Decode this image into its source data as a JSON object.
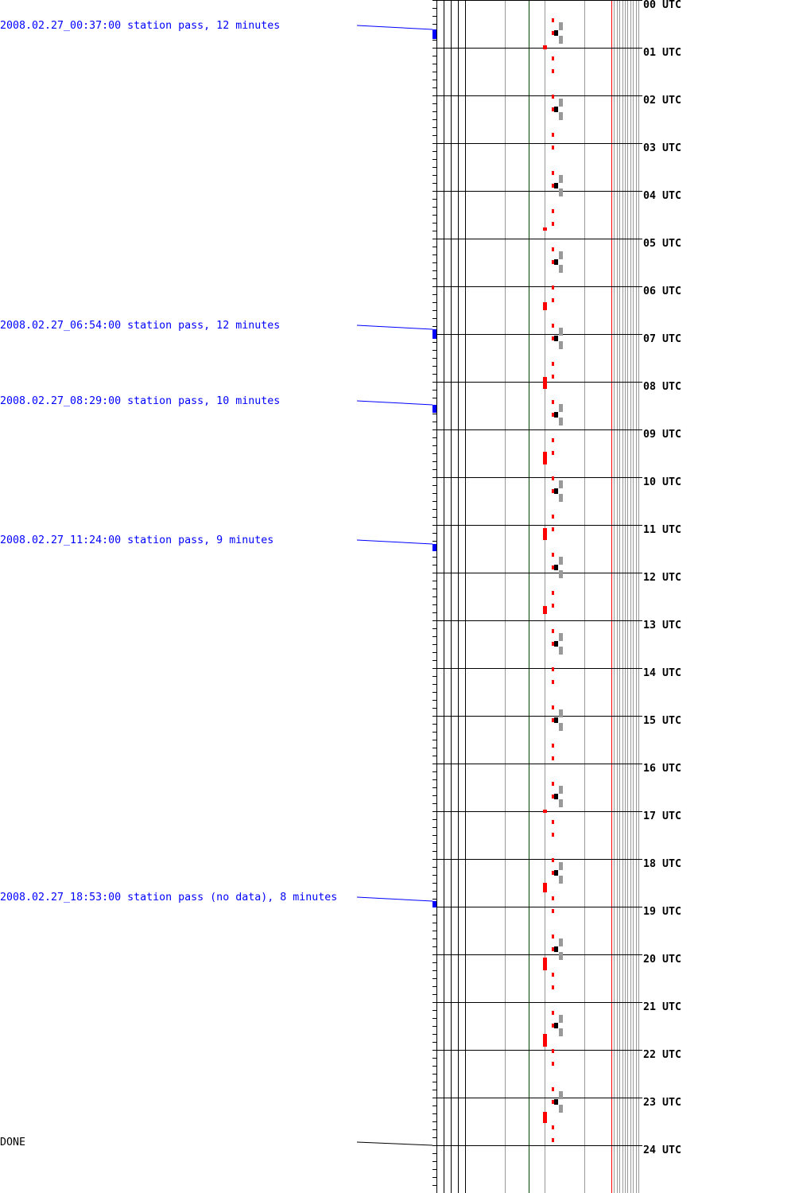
{
  "chart_data": {
    "type": "timeline",
    "y_axis": {
      "unit": "minutes of day",
      "range": [
        0,
        1500
      ],
      "minor_tick_minutes": 10
    },
    "hour_labels": [
      "00 UTC",
      "01 UTC",
      "02 UTC",
      "03 UTC",
      "04 UTC",
      "05 UTC",
      "06 UTC",
      "07 UTC",
      "08 UTC",
      "09 UTC",
      "10 UTC",
      "11 UTC",
      "12 UTC",
      "13 UTC",
      "14 UTC",
      "15 UTC",
      "16 UTC",
      "17 UTC",
      "18 UTC",
      "19 UTC",
      "20 UTC",
      "21 UTC",
      "22 UTC",
      "23 UTC",
      "24 UTC"
    ],
    "passes": [
      {
        "label": "2008.02.27_00:37:00 station pass, 12 minutes",
        "start_min": 37,
        "duration_min": 12
      },
      {
        "label": "2008.02.27_06:54:00 station pass, 12 minutes",
        "start_min": 414,
        "duration_min": 12
      },
      {
        "label": "2008.02.27_08:29:00 station pass, 10 minutes",
        "start_min": 509,
        "duration_min": 10
      },
      {
        "label": "2008.02.27_11:24:00 station pass, 9 minutes",
        "start_min": 684,
        "duration_min": 9
      },
      {
        "label": "2008.02.27_18:53:00 station pass (no data), 8 minutes",
        "start_min": 1133,
        "duration_min": 8
      }
    ],
    "end_marker": {
      "label": "DONE",
      "minute": 1440
    },
    "black_marks_min": [
      41,
      137,
      233,
      329,
      425,
      521,
      617,
      713,
      809,
      905,
      1001,
      1097,
      1193,
      1289,
      1385
    ],
    "red_large_bars": [
      [
        57,
        5
      ],
      [
        286,
        4
      ],
      [
        380,
        10
      ],
      [
        474,
        15
      ],
      [
        568,
        16
      ],
      [
        664,
        15
      ],
      [
        762,
        10
      ],
      [
        1018,
        4
      ],
      [
        1110,
        12
      ],
      [
        1204,
        16
      ],
      [
        1300,
        16
      ],
      [
        1398,
        14
      ]
    ],
    "colors": {
      "pass": "#0000ff",
      "red": "#ff0000",
      "gray": "#999999",
      "green": "#004400",
      "black": "#000000"
    }
  }
}
